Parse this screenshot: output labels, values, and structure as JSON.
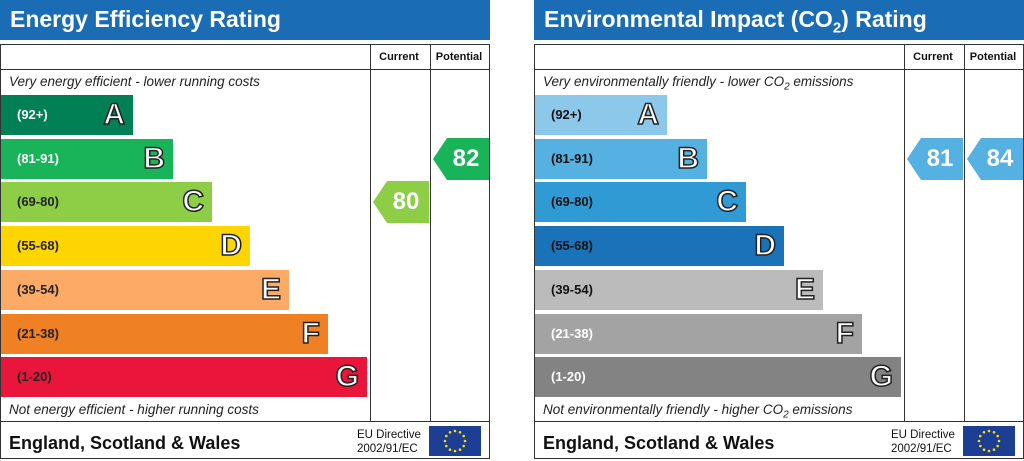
{
  "chart_data": [
    {
      "type": "bar",
      "title": "Energy Efficiency Rating",
      "columns": [
        "Current",
        "Potential"
      ],
      "top_note": "Very energy efficient - lower running costs",
      "bottom_note": "Not energy efficient - higher running costs",
      "bands": [
        {
          "range": "(92+)",
          "letter": "A",
          "color": "#008054"
        },
        {
          "range": "(81-91)",
          "letter": "B",
          "color": "#19b459"
        },
        {
          "range": "(69-80)",
          "letter": "C",
          "color": "#8dce46"
        },
        {
          "range": "(55-68)",
          "letter": "D",
          "color": "#ffd500"
        },
        {
          "range": "(39-54)",
          "letter": "E",
          "color": "#fcaa65"
        },
        {
          "range": "(21-38)",
          "letter": "F",
          "color": "#ef8023"
        },
        {
          "range": "(1-20)",
          "letter": "G",
          "color": "#e9153b"
        }
      ],
      "current": {
        "value": 80,
        "color": "#8dce46"
      },
      "potential": {
        "value": 82,
        "color": "#19b459"
      },
      "footer_country": "England, Scotland & Wales",
      "eu_line1": "EU Directive",
      "eu_line2": "2002/91/EC"
    },
    {
      "type": "bar",
      "title_prefix": "Environmental Impact (CO",
      "title_sub": "2",
      "title_suffix": ") Rating",
      "columns": [
        "Current",
        "Potential"
      ],
      "top_note_prefix": "Very environmentally friendly - lower CO",
      "top_note_sub": "2",
      "top_note_suffix": " emissions",
      "bottom_note_prefix": "Not environmentally friendly - higher CO",
      "bottom_note_sub": "2",
      "bottom_note_suffix": " emissions",
      "bands": [
        {
          "range": "(92+)",
          "letter": "A",
          "color": "#8cc8ea"
        },
        {
          "range": "(81-91)",
          "letter": "B",
          "color": "#55b1e1"
        },
        {
          "range": "(69-80)",
          "letter": "C",
          "color": "#2f9ad4"
        },
        {
          "range": "(55-68)",
          "letter": "D",
          "color": "#1a72b8"
        },
        {
          "range": "(39-54)",
          "letter": "E",
          "color": "#bbbbbb"
        },
        {
          "range": "(21-38)",
          "letter": "F",
          "color": "#a3a3a3"
        },
        {
          "range": "(1-20)",
          "letter": "G",
          "color": "#838383"
        }
      ],
      "current": {
        "value": 81,
        "color": "#55b1e1"
      },
      "potential": {
        "value": 84,
        "color": "#55b1e1"
      },
      "footer_country": "England, Scotland & Wales",
      "eu_line1": "EU Directive",
      "eu_line2": "2002/91/EC"
    }
  ]
}
